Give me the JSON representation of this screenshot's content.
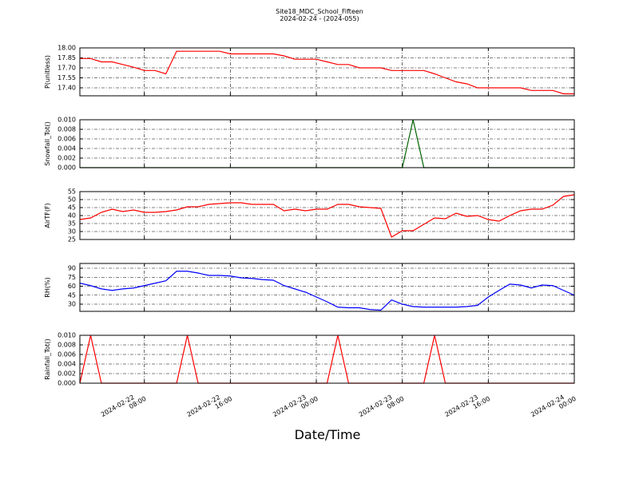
{
  "figure": {
    "title": "Site18_MDC_School_Fifteen",
    "subtitle": "2024-02-24 - (2024-055)",
    "xlabel": "Date/Time"
  },
  "chart_data": [
    {
      "type": "line",
      "ylabel": "P(unitless)",
      "color": "#ff0000",
      "grid": true,
      "x": [
        "2024-02-22 02:00",
        "2024-02-22 03:00",
        "2024-02-22 04:00",
        "2024-02-22 05:00",
        "2024-02-22 06:00",
        "2024-02-22 07:00",
        "2024-02-22 08:00",
        "2024-02-22 09:00",
        "2024-02-22 10:00",
        "2024-02-22 11:00",
        "2024-02-22 12:00",
        "2024-02-22 13:00",
        "2024-02-22 14:00",
        "2024-02-22 15:00",
        "2024-02-22 16:00",
        "2024-02-22 17:00",
        "2024-02-22 18:00",
        "2024-02-22 19:00",
        "2024-02-22 20:00",
        "2024-02-22 21:00",
        "2024-02-22 22:00",
        "2024-02-22 23:00",
        "2024-02-23 00:00",
        "2024-02-23 01:00",
        "2024-02-23 02:00",
        "2024-02-23 03:00",
        "2024-02-23 04:00",
        "2024-02-23 05:00",
        "2024-02-23 06:00",
        "2024-02-23 07:00",
        "2024-02-23 08:00",
        "2024-02-23 09:00",
        "2024-02-23 10:00",
        "2024-02-23 11:00",
        "2024-02-23 12:00",
        "2024-02-23 13:00",
        "2024-02-23 14:00",
        "2024-02-23 15:00",
        "2024-02-23 16:00",
        "2024-02-23 17:00",
        "2024-02-23 18:00",
        "2024-02-23 19:00",
        "2024-02-23 20:00",
        "2024-02-23 21:00",
        "2024-02-23 22:00",
        "2024-02-23 23:00",
        "2024-02-24 00:00"
      ],
      "values": [
        17.84,
        17.84,
        17.79,
        17.79,
        17.75,
        17.71,
        17.66,
        17.66,
        17.61,
        17.95,
        17.95,
        17.95,
        17.95,
        17.95,
        17.91,
        17.91,
        17.91,
        17.91,
        17.91,
        17.88,
        17.83,
        17.83,
        17.83,
        17.79,
        17.75,
        17.75,
        17.7,
        17.7,
        17.7,
        17.66,
        17.66,
        17.66,
        17.66,
        17.61,
        17.55,
        17.49,
        17.46,
        17.4,
        17.4,
        17.4,
        17.4,
        17.4,
        17.36,
        17.36,
        17.36,
        17.31,
        17.31
      ],
      "ylim": [
        17.28,
        18.0
      ],
      "yticks": [
        {
          "value": 18.0,
          "label": "18.00"
        },
        {
          "value": 17.85,
          "label": "17.85"
        },
        {
          "value": 17.7,
          "label": "17.70"
        },
        {
          "value": 17.55,
          "label": "17.55"
        },
        {
          "value": 17.4,
          "label": "17.40"
        }
      ]
    },
    {
      "type": "line",
      "ylabel": "Snowfall_Tot()",
      "color": "#006400",
      "grid": true,
      "x": [
        "2024-02-22 02:00",
        "2024-02-22 03:00",
        "2024-02-22 04:00",
        "2024-02-22 05:00",
        "2024-02-22 06:00",
        "2024-02-22 07:00",
        "2024-02-22 08:00",
        "2024-02-22 09:00",
        "2024-02-22 10:00",
        "2024-02-22 11:00",
        "2024-02-22 12:00",
        "2024-02-22 13:00",
        "2024-02-22 14:00",
        "2024-02-22 15:00",
        "2024-02-22 16:00",
        "2024-02-22 17:00",
        "2024-02-22 18:00",
        "2024-02-22 19:00",
        "2024-02-22 20:00",
        "2024-02-22 21:00",
        "2024-02-22 22:00",
        "2024-02-22 23:00",
        "2024-02-23 00:00",
        "2024-02-23 01:00",
        "2024-02-23 02:00",
        "2024-02-23 03:00",
        "2024-02-23 04:00",
        "2024-02-23 05:00",
        "2024-02-23 06:00",
        "2024-02-23 07:00",
        "2024-02-23 08:00",
        "2024-02-23 09:00",
        "2024-02-23 10:00",
        "2024-02-23 11:00",
        "2024-02-23 12:00",
        "2024-02-23 13:00",
        "2024-02-23 14:00",
        "2024-02-23 15:00",
        "2024-02-23 16:00",
        "2024-02-23 17:00",
        "2024-02-23 18:00",
        "2024-02-23 19:00",
        "2024-02-23 20:00",
        "2024-02-23 21:00",
        "2024-02-23 22:00",
        "2024-02-23 23:00",
        "2024-02-24 00:00"
      ],
      "values": [
        0,
        0,
        0,
        0,
        0,
        0,
        0,
        0,
        0,
        0,
        0,
        0,
        0,
        0,
        0,
        0,
        0,
        0,
        0,
        0,
        0,
        0,
        0,
        0,
        0,
        0,
        0,
        0,
        0,
        0,
        0,
        0.01,
        0,
        0,
        0,
        0,
        0,
        0,
        0,
        0,
        0,
        0,
        0,
        0,
        0,
        0,
        0
      ],
      "ylim": [
        0,
        0.01
      ],
      "yticks": [
        {
          "value": 0,
          "label": "0.000"
        },
        {
          "value": 0.002,
          "label": "0.002"
        },
        {
          "value": 0.004,
          "label": "0.004"
        },
        {
          "value": 0.006,
          "label": "0.006"
        },
        {
          "value": 0.008,
          "label": "0.008"
        },
        {
          "value": 0.01,
          "label": "0.010"
        }
      ]
    },
    {
      "type": "line",
      "ylabel": "AirTF(F)",
      "color": "#ff0000",
      "grid": true,
      "x": [
        "2024-02-22 02:00",
        "2024-02-22 03:00",
        "2024-02-22 04:00",
        "2024-02-22 05:00",
        "2024-02-22 06:00",
        "2024-02-22 07:00",
        "2024-02-22 08:00",
        "2024-02-22 09:00",
        "2024-02-22 10:00",
        "2024-02-22 11:00",
        "2024-02-22 12:00",
        "2024-02-22 13:00",
        "2024-02-22 14:00",
        "2024-02-22 15:00",
        "2024-02-22 16:00",
        "2024-02-22 17:00",
        "2024-02-22 18:00",
        "2024-02-22 19:00",
        "2024-02-22 20:00",
        "2024-02-22 21:00",
        "2024-02-22 22:00",
        "2024-02-22 23:00",
        "2024-02-23 00:00",
        "2024-02-23 01:00",
        "2024-02-23 02:00",
        "2024-02-23 03:00",
        "2024-02-23 04:00",
        "2024-02-23 05:00",
        "2024-02-23 06:00",
        "2024-02-23 07:00",
        "2024-02-23 08:00",
        "2024-02-23 09:00",
        "2024-02-23 10:00",
        "2024-02-23 11:00",
        "2024-02-23 12:00",
        "2024-02-23 13:00",
        "2024-02-23 14:00",
        "2024-02-23 15:00",
        "2024-02-23 16:00",
        "2024-02-23 17:00",
        "2024-02-23 18:00",
        "2024-02-23 19:00",
        "2024-02-23 20:00",
        "2024-02-23 21:00",
        "2024-02-23 22:00",
        "2024-02-23 23:00",
        "2024-02-24 00:00"
      ],
      "values": [
        37.5,
        38.5,
        42,
        44,
        42.5,
        43.5,
        42,
        42,
        42.5,
        43.5,
        45.5,
        45.5,
        47,
        47.5,
        48,
        48,
        47,
        47,
        47,
        43,
        44,
        43,
        44,
        44,
        47,
        47,
        45.5,
        45,
        44.5,
        26.5,
        30.5,
        30.5,
        34.5,
        38.5,
        38,
        41.5,
        39.5,
        40,
        37.5,
        36.5,
        40,
        43,
        44,
        44,
        46.5,
        52,
        53
      ],
      "ylim": [
        25,
        55
      ],
      "yticks": [
        25,
        30,
        35,
        40,
        45,
        50,
        55
      ]
    },
    {
      "type": "line",
      "ylabel": "RH(%)",
      "color": "#0000ff",
      "grid": true,
      "x": [
        "2024-02-22 02:00",
        "2024-02-22 03:00",
        "2024-02-22 04:00",
        "2024-02-22 05:00",
        "2024-02-22 06:00",
        "2024-02-22 07:00",
        "2024-02-22 08:00",
        "2024-02-22 09:00",
        "2024-02-22 10:00",
        "2024-02-22 11:00",
        "2024-02-22 12:00",
        "2024-02-22 13:00",
        "2024-02-22 14:00",
        "2024-02-22 15:00",
        "2024-02-22 16:00",
        "2024-02-22 17:00",
        "2024-02-22 18:00",
        "2024-02-22 19:00",
        "2024-02-22 20:00",
        "2024-02-22 21:00",
        "2024-02-22 22:00",
        "2024-02-22 23:00",
        "2024-02-23 00:00",
        "2024-02-23 01:00",
        "2024-02-23 02:00",
        "2024-02-23 03:00",
        "2024-02-23 04:00",
        "2024-02-23 05:00",
        "2024-02-23 06:00",
        "2024-02-23 07:00",
        "2024-02-23 08:00",
        "2024-02-23 09:00",
        "2024-02-23 10:00",
        "2024-02-23 11:00",
        "2024-02-23 12:00",
        "2024-02-23 13:00",
        "2024-02-23 14:00",
        "2024-02-23 15:00",
        "2024-02-23 16:00",
        "2024-02-23 17:00",
        "2024-02-23 18:00",
        "2024-02-23 19:00",
        "2024-02-23 20:00",
        "2024-02-23 21:00",
        "2024-02-23 22:00",
        "2024-02-23 23:00",
        "2024-02-24 00:00"
      ],
      "values": [
        65,
        61,
        55.5,
        53,
        55.5,
        57,
        61,
        65,
        69,
        85,
        85,
        82,
        78,
        78,
        77,
        74,
        73,
        71,
        70,
        61,
        55.5,
        50,
        42,
        34,
        25,
        24,
        24,
        21,
        20,
        37,
        30,
        26,
        25,
        25,
        25,
        25,
        26,
        28,
        42,
        53,
        63.5,
        62,
        57,
        62,
        61,
        53,
        45
      ],
      "ylim": [
        18,
        98
      ],
      "yticks": [
        30,
        45,
        60,
        75,
        90
      ]
    },
    {
      "type": "line",
      "ylabel": "Rainfall_Tot()",
      "color": "#ff0000",
      "grid": true,
      "x": [
        "2024-02-22 02:00",
        "2024-02-22 03:00",
        "2024-02-22 04:00",
        "2024-02-22 05:00",
        "2024-02-22 06:00",
        "2024-02-22 07:00",
        "2024-02-22 08:00",
        "2024-02-22 09:00",
        "2024-02-22 10:00",
        "2024-02-22 11:00",
        "2024-02-22 12:00",
        "2024-02-22 13:00",
        "2024-02-22 14:00",
        "2024-02-22 15:00",
        "2024-02-22 16:00",
        "2024-02-22 17:00",
        "2024-02-22 18:00",
        "2024-02-22 19:00",
        "2024-02-22 20:00",
        "2024-02-22 21:00",
        "2024-02-22 22:00",
        "2024-02-22 23:00",
        "2024-02-23 00:00",
        "2024-02-23 01:00",
        "2024-02-23 02:00",
        "2024-02-23 03:00",
        "2024-02-23 04:00",
        "2024-02-23 05:00",
        "2024-02-23 06:00",
        "2024-02-23 07:00",
        "2024-02-23 08:00",
        "2024-02-23 09:00",
        "2024-02-23 10:00",
        "2024-02-23 11:00",
        "2024-02-23 12:00",
        "2024-02-23 13:00",
        "2024-02-23 14:00",
        "2024-02-23 15:00",
        "2024-02-23 16:00",
        "2024-02-23 17:00",
        "2024-02-23 18:00",
        "2024-02-23 19:00",
        "2024-02-23 20:00",
        "2024-02-23 21:00",
        "2024-02-23 22:00",
        "2024-02-23 23:00",
        "2024-02-24 00:00"
      ],
      "values": [
        0,
        0.01,
        0,
        0,
        0,
        0,
        0,
        0,
        0,
        0,
        0.01,
        0,
        0,
        0,
        0,
        0,
        0,
        0,
        0,
        0,
        0,
        0,
        0,
        0,
        0.01,
        0,
        0,
        0,
        0,
        0,
        0,
        0,
        0,
        0.01,
        0,
        0,
        0,
        0,
        0,
        0,
        0,
        0,
        0,
        0,
        0,
        0,
        0
      ],
      "ylim": [
        0,
        0.01
      ],
      "yticks": [
        {
          "value": 0,
          "label": "0.000"
        },
        {
          "value": 0.002,
          "label": "0.002"
        },
        {
          "value": 0.004,
          "label": "0.004"
        },
        {
          "value": 0.006,
          "label": "0.006"
        },
        {
          "value": 0.008,
          "label": "0.008"
        },
        {
          "value": 0.01,
          "label": "0.010"
        }
      ],
      "xlim": [
        "2024-02-22 02:00",
        "2024-02-24 00:00"
      ],
      "xticks": [
        "2024-02-22 08:00",
        "2024-02-22 16:00",
        "2024-02-23 00:00",
        "2024-02-23 08:00",
        "2024-02-23 16:00",
        "2024-02-24 00:00"
      ]
    }
  ]
}
